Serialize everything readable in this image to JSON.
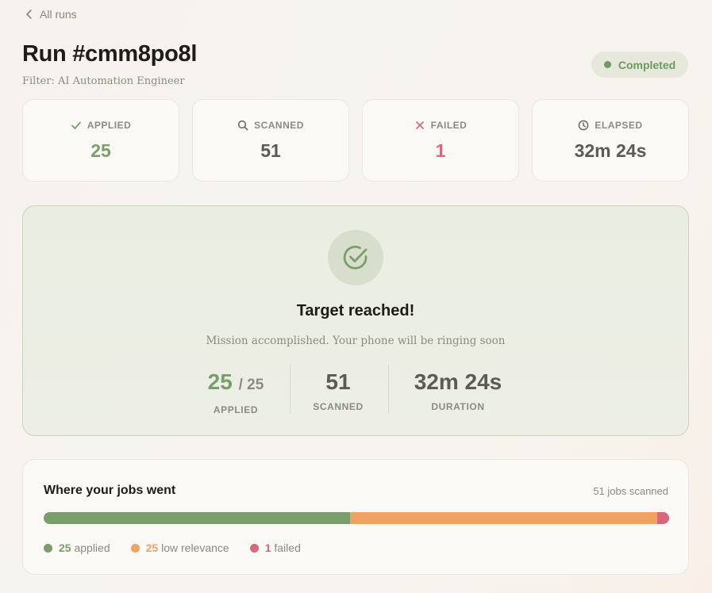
{
  "nav": {
    "back_label": "All runs"
  },
  "header": {
    "title": "Run #cmm8po8l",
    "filter": "Filter: AI Automation Engineer",
    "status": "Completed",
    "status_color": "#6d9a60"
  },
  "stats": [
    {
      "icon": "check-icon",
      "label": "APPLIED",
      "value": "25",
      "color": "#7a9e6b"
    },
    {
      "icon": "search-icon",
      "label": "SCANNED",
      "value": "51",
      "color": "#5e5a53"
    },
    {
      "icon": "close-icon",
      "label": "FAILED",
      "value": "1",
      "color": "#d06a7c"
    },
    {
      "icon": "clock-icon",
      "label": "ELAPSED",
      "value": "32m 24s",
      "color": "#5e5a53"
    }
  ],
  "target": {
    "heading": "Target reached!",
    "message": "Mission accomplished. Your phone will be ringing soon",
    "applied_value": "25",
    "applied_total": "/ 25",
    "applied_label": "APPLIED",
    "scanned_value": "51",
    "scanned_label": "SCANNED",
    "duration_value": "32m 24s",
    "duration_label": "DURATION"
  },
  "breakdown": {
    "title": "Where your jobs went",
    "count_text": "51 jobs scanned",
    "segments": [
      {
        "count": 25,
        "count_text": "25",
        "label": "applied",
        "color": "#7a9e6b"
      },
      {
        "count": 25,
        "count_text": "25",
        "label": "low relevance",
        "color": "#f0a263"
      },
      {
        "count": 1,
        "count_text": "1",
        "label": "failed",
        "color": "#d9667a"
      }
    ]
  }
}
